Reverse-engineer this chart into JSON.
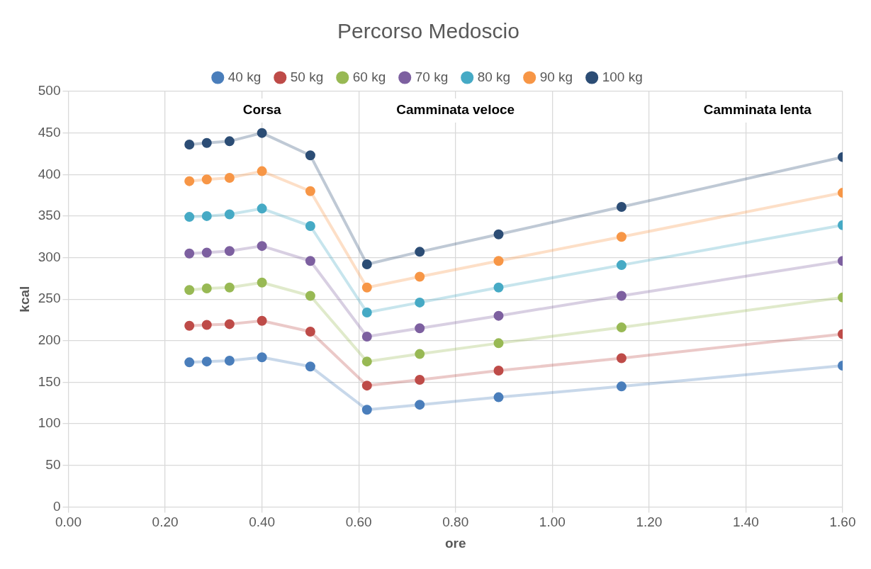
{
  "chart_data": {
    "type": "line",
    "title": "Percorso Medoscio",
    "xlabel": "ore",
    "ylabel": "kcal",
    "x": [
      0.25,
      0.286,
      0.333,
      0.4,
      0.5,
      0.617,
      0.726,
      0.889,
      1.143,
      1.6
    ],
    "series": [
      {
        "name": "40 kg",
        "color": "#4a7ebb",
        "values": [
          174,
          175,
          176,
          180,
          169,
          117,
          123,
          132,
          145,
          170
        ]
      },
      {
        "name": "50 kg",
        "color": "#be4b48",
        "values": [
          218,
          219,
          220,
          224,
          211,
          146,
          153,
          164,
          179,
          208
        ]
      },
      {
        "name": "60 kg",
        "color": "#98b954",
        "values": [
          261,
          263,
          264,
          270,
          254,
          175,
          184,
          197,
          216,
          252
        ]
      },
      {
        "name": "70 kg",
        "color": "#7d60a0",
        "values": [
          305,
          306,
          308,
          314,
          296,
          205,
          215,
          230,
          254,
          296
        ]
      },
      {
        "name": "80 kg",
        "color": "#46aac5",
        "values": [
          349,
          350,
          352,
          359,
          338,
          234,
          246,
          264,
          291,
          339
        ]
      },
      {
        "name": "90 kg",
        "color": "#f79646",
        "values": [
          392,
          394,
          396,
          404,
          380,
          264,
          277,
          296,
          325,
          378
        ]
      },
      {
        "name": "100 kg",
        "color": "#2c4d75",
        "values": [
          436,
          438,
          440,
          450,
          423,
          292,
          307,
          328,
          361,
          421
        ]
      }
    ],
    "xlim": [
      0,
      1.6
    ],
    "xticks": [
      {
        "value": 0,
        "label": "0.00"
      },
      {
        "value": 0.2,
        "label": "0.20"
      },
      {
        "value": 0.4,
        "label": "0.40"
      },
      {
        "value": 0.6,
        "label": "0.60"
      },
      {
        "value": 0.8,
        "label": "0.80"
      },
      {
        "value": 1.0,
        "label": "1.00"
      },
      {
        "value": 1.2,
        "label": "1.20"
      },
      {
        "value": 1.4,
        "label": "1.40"
      },
      {
        "value": 1.6,
        "label": "1.60"
      }
    ],
    "ylim": [
      0,
      500
    ],
    "yticks": [
      0,
      50,
      100,
      150,
      200,
      250,
      300,
      350,
      400,
      450,
      500
    ],
    "annotations": [
      "Corsa",
      "Camminata veloce",
      "Camminata lenta"
    ],
    "grid": true,
    "legend": "top",
    "marker": "circle",
    "line_style": "solid"
  }
}
